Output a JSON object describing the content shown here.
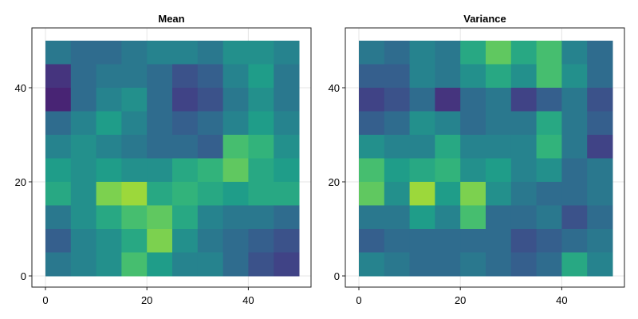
{
  "chart_data": [
    {
      "type": "heatmap",
      "title": "Mean",
      "xlabel": "",
      "ylabel": "",
      "xlim": [
        0,
        50
      ],
      "ylim": [
        0,
        50
      ],
      "xticks": [
        "0",
        "20",
        "40"
      ],
      "yticks": [
        "0",
        "20",
        "40"
      ],
      "tick_values": [
        0,
        20,
        40
      ],
      "grid": true,
      "colormap": "viridis",
      "note": "coarse 10x10 approximation of a 50x50 field; rows listed from y=50 (top) down to y=0, values normalized 0-1",
      "z": [
        [
          0.4,
          0.35,
          0.35,
          0.4,
          0.45,
          0.45,
          0.4,
          0.5,
          0.5,
          0.45
        ],
        [
          0.15,
          0.35,
          0.4,
          0.4,
          0.35,
          0.25,
          0.3,
          0.45,
          0.55,
          0.4
        ],
        [
          0.1,
          0.35,
          0.45,
          0.5,
          0.35,
          0.2,
          0.25,
          0.4,
          0.5,
          0.4
        ],
        [
          0.35,
          0.45,
          0.55,
          0.45,
          0.35,
          0.3,
          0.35,
          0.45,
          0.55,
          0.45
        ],
        [
          0.45,
          0.5,
          0.45,
          0.4,
          0.35,
          0.35,
          0.3,
          0.7,
          0.65,
          0.5
        ],
        [
          0.55,
          0.5,
          0.55,
          0.5,
          0.5,
          0.6,
          0.65,
          0.75,
          0.6,
          0.55
        ],
        [
          0.6,
          0.5,
          0.8,
          0.85,
          0.6,
          0.65,
          0.6,
          0.55,
          0.6,
          0.6
        ],
        [
          0.4,
          0.5,
          0.6,
          0.7,
          0.75,
          0.6,
          0.45,
          0.4,
          0.4,
          0.35
        ],
        [
          0.3,
          0.45,
          0.5,
          0.6,
          0.8,
          0.5,
          0.4,
          0.35,
          0.3,
          0.25
        ],
        [
          0.4,
          0.45,
          0.5,
          0.7,
          0.55,
          0.45,
          0.45,
          0.35,
          0.25,
          0.2
        ]
      ]
    },
    {
      "type": "heatmap",
      "title": "Variance",
      "xlabel": "",
      "ylabel": "",
      "xlim": [
        0,
        50
      ],
      "ylim": [
        0,
        50
      ],
      "xticks": [
        "0",
        "20",
        "40"
      ],
      "yticks": [
        "0",
        "20",
        "40"
      ],
      "tick_values": [
        0,
        20,
        40
      ],
      "grid": true,
      "colormap": "viridis",
      "note": "coarse 10x10 approximation of a 50x50 field; rows listed from y=50 (top) down to y=0, values normalized 0-1",
      "z": [
        [
          0.4,
          0.35,
          0.45,
          0.4,
          0.6,
          0.75,
          0.6,
          0.7,
          0.45,
          0.35
        ],
        [
          0.3,
          0.3,
          0.45,
          0.4,
          0.5,
          0.6,
          0.5,
          0.7,
          0.5,
          0.35
        ],
        [
          0.2,
          0.25,
          0.35,
          0.15,
          0.35,
          0.4,
          0.2,
          0.3,
          0.4,
          0.25
        ],
        [
          0.3,
          0.35,
          0.5,
          0.45,
          0.35,
          0.4,
          0.4,
          0.6,
          0.4,
          0.3
        ],
        [
          0.5,
          0.45,
          0.45,
          0.6,
          0.45,
          0.45,
          0.45,
          0.65,
          0.4,
          0.2
        ],
        [
          0.7,
          0.55,
          0.6,
          0.65,
          0.5,
          0.55,
          0.45,
          0.5,
          0.35,
          0.4
        ],
        [
          0.75,
          0.5,
          0.85,
          0.55,
          0.8,
          0.5,
          0.4,
          0.35,
          0.35,
          0.4
        ],
        [
          0.4,
          0.4,
          0.55,
          0.45,
          0.7,
          0.35,
          0.35,
          0.4,
          0.25,
          0.35
        ],
        [
          0.3,
          0.35,
          0.35,
          0.35,
          0.35,
          0.35,
          0.25,
          0.3,
          0.35,
          0.4
        ],
        [
          0.45,
          0.4,
          0.35,
          0.35,
          0.4,
          0.35,
          0.3,
          0.35,
          0.6,
          0.45
        ]
      ]
    }
  ]
}
